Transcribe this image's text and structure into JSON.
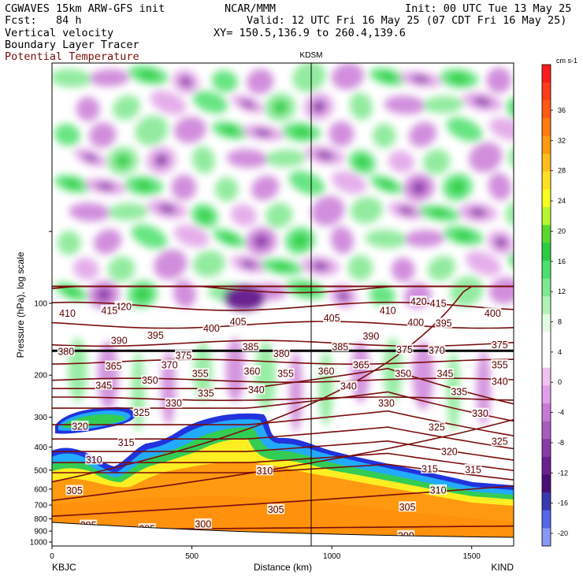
{
  "header": {
    "model_line": "CGWAVES 15km ARW-GFS init",
    "center": "NCAR/MMM",
    "init": "Init: 00 UTC Tue 13 May 25",
    "fcst": "Fcst:   84 h",
    "valid": "Valid: 12 UTC Fri 16 May 25 (07 CDT Fri 16 May 25)",
    "field1": "Vertical velocity",
    "xy": "XY= 150.5,136.9 to 260.4,139.6",
    "field2": "Boundary Layer Tracer",
    "field3": "Potential Temperature"
  },
  "colors": {
    "theta_contour": "#7a0d0d",
    "brown_text": "#7a0d0d"
  },
  "chart_data": {
    "type": "cross-section",
    "title": "",
    "xlabel": "Distance (km)",
    "ylabel": "Pressure (hPa), log scale",
    "xlim": [
      0,
      1650
    ],
    "ylim": [
      1000,
      100
    ],
    "x_ticks": [
      "0",
      "500",
      "1000",
      "1500"
    ],
    "x_tick_values": [
      0,
      500,
      1000,
      1500
    ],
    "y_ticks": [
      "100",
      "200",
      "300",
      "400",
      "500",
      "600",
      "700",
      "800",
      "900",
      "1000"
    ],
    "y_tick_values": [
      100,
      200,
      300,
      400,
      500,
      600,
      700,
      800,
      900,
      1000
    ],
    "left_station": "KBJC",
    "right_station": "KIND",
    "mid_station": "KDSM",
    "mid_station_km": 940,
    "colorbar": {
      "units": "cm s-1",
      "labels": [
        "36",
        "32",
        "28",
        "24",
        "20",
        "16",
        "12",
        "8",
        "4",
        "0",
        "-4",
        "-8",
        "-12",
        "-16",
        "-20"
      ],
      "label_values": [
        36,
        32,
        28,
        24,
        20,
        16,
        12,
        8,
        4,
        0,
        -4,
        -8,
        -12,
        -16,
        -20
      ],
      "colors": [
        "#ff1a1a",
        "#ff3b1a",
        "#ff5a14",
        "#ff7a10",
        "#ff9a10",
        "#ffbe1e",
        "#ffe020",
        "#f6ff20",
        "#b8f530",
        "#5ad830",
        "#2ecc40",
        "#4de06c",
        "#7fe88e",
        "#b0f2b8",
        "#e1fbe4",
        "#ffffff",
        "#ffffff",
        "#f0c2f0",
        "#e0a0e8",
        "#c97ad6",
        "#a95cc0",
        "#8a3aa8",
        "#6a2090",
        "#4a1078",
        "#3a3ab0",
        "#5566e6",
        "#8899f5"
      ]
    },
    "theta_labels": [
      {
        "text": "420",
        "x": 255,
        "p": 103
      },
      {
        "text": "420",
        "x": 1310,
        "p": 98
      },
      {
        "text": "415",
        "x": 205,
        "p": 107
      },
      {
        "text": "415",
        "x": 1380,
        "p": 100
      },
      {
        "text": "410",
        "x": 55,
        "p": 110
      },
      {
        "text": "410",
        "x": 1200,
        "p": 107
      },
      {
        "text": "405",
        "x": 665,
        "p": 119
      },
      {
        "text": "405",
        "x": 1000,
        "p": 115
      },
      {
        "text": "400",
        "x": 570,
        "p": 127
      },
      {
        "text": "400",
        "x": 1300,
        "p": 120
      },
      {
        "text": "400",
        "x": 1575,
        "p": 110
      },
      {
        "text": "395",
        "x": 370,
        "p": 136
      },
      {
        "text": "395",
        "x": 1400,
        "p": 121
      },
      {
        "text": "390",
        "x": 240,
        "p": 143
      },
      {
        "text": "390",
        "x": 1140,
        "p": 137
      },
      {
        "text": "385",
        "x": 710,
        "p": 152
      },
      {
        "text": "385",
        "x": 1030,
        "p": 152
      },
      {
        "text": "380",
        "x": 50,
        "p": 159
      },
      {
        "text": "380",
        "x": 820,
        "p": 162
      },
      {
        "text": "375",
        "x": 470,
        "p": 165
      },
      {
        "text": "375",
        "x": 1260,
        "p": 156
      },
      {
        "text": "375",
        "x": 1600,
        "p": 149
      },
      {
        "text": "370",
        "x": 420,
        "p": 181
      },
      {
        "text": "370",
        "x": 1375,
        "p": 157
      },
      {
        "text": "365",
        "x": 220,
        "p": 183
      },
      {
        "text": "365",
        "x": 1105,
        "p": 181
      },
      {
        "text": "360",
        "x": 715,
        "p": 192
      },
      {
        "text": "360",
        "x": 980,
        "p": 192
      },
      {
        "text": "355",
        "x": 530,
        "p": 197
      },
      {
        "text": "355",
        "x": 835,
        "p": 197
      },
      {
        "text": "355",
        "x": 1600,
        "p": 181
      },
      {
        "text": "350",
        "x": 350,
        "p": 210
      },
      {
        "text": "350",
        "x": 1255,
        "p": 197
      },
      {
        "text": "345",
        "x": 185,
        "p": 220
      },
      {
        "text": "345",
        "x": 1405,
        "p": 197
      },
      {
        "text": "340",
        "x": 730,
        "p": 230
      },
      {
        "text": "340",
        "x": 1060,
        "p": 222
      },
      {
        "text": "340",
        "x": 1600,
        "p": 212
      },
      {
        "text": "335",
        "x": 550,
        "p": 238
      },
      {
        "text": "335",
        "x": 1455,
        "p": 234
      },
      {
        "text": "330",
        "x": 435,
        "p": 262
      },
      {
        "text": "330",
        "x": 1195,
        "p": 262
      },
      {
        "text": "330",
        "x": 1530,
        "p": 289
      },
      {
        "text": "325",
        "x": 320,
        "p": 286
      },
      {
        "text": "325",
        "x": 1375,
        "p": 330
      },
      {
        "text": "325",
        "x": 1600,
        "p": 378
      },
      {
        "text": "320",
        "x": 100,
        "p": 327
      },
      {
        "text": "320",
        "x": 1420,
        "p": 417
      },
      {
        "text": "315",
        "x": 265,
        "p": 382
      },
      {
        "text": "315",
        "x": 1350,
        "p": 493
      },
      {
        "text": "315",
        "x": 1505,
        "p": 497
      },
      {
        "text": "310",
        "x": 150,
        "p": 452
      },
      {
        "text": "310",
        "x": 760,
        "p": 502
      },
      {
        "text": "310",
        "x": 1380,
        "p": 605
      },
      {
        "text": "305",
        "x": 80,
        "p": 608
      },
      {
        "text": "305",
        "x": 800,
        "p": 730
      },
      {
        "text": "305",
        "x": 1270,
        "p": 712
      },
      {
        "text": "300",
        "x": 540,
        "p": 840
      },
      {
        "text": "300",
        "x": 1265,
        "p": 940
      },
      {
        "text": "295",
        "x": 130,
        "p": 850
      },
      {
        "text": "295",
        "x": 340,
        "p": 880
      }
    ]
  }
}
